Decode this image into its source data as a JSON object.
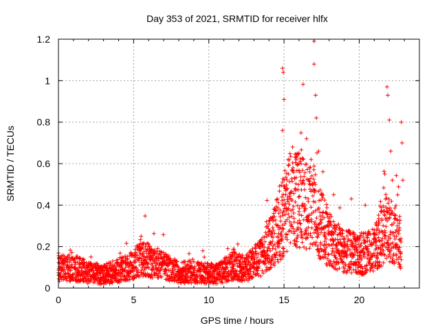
{
  "chart_data": {
    "type": "scatter",
    "title": "Day 353 of 2021, SRMTID for receiver hlfx",
    "xlabel": "GPS time / hours",
    "ylabel": "SRMTID / TECUs",
    "xlim": [
      0,
      24
    ],
    "ylim": [
      0,
      1.2
    ],
    "xticks": [
      0,
      5,
      10,
      15,
      20
    ],
    "yticks": [
      0,
      0.2,
      0.4,
      0.6,
      0.8,
      1,
      1.2
    ],
    "xtick_labels": [
      "0",
      "5",
      "10",
      "15",
      "20"
    ],
    "ytick_labels": [
      "0",
      "0.2",
      "0.4",
      "0.6",
      "0.8",
      "1",
      "1.2"
    ],
    "grid": true,
    "marker": "+",
    "series": [
      {
        "name": "SRMTID",
        "color": "#ff0000",
        "envelope": [
          {
            "x": 0.0,
            "y": 0.09
          },
          {
            "x": 1.0,
            "y": 0.09
          },
          {
            "x": 2.0,
            "y": 0.07
          },
          {
            "x": 3.0,
            "y": 0.06
          },
          {
            "x": 4.0,
            "y": 0.08
          },
          {
            "x": 5.0,
            "y": 0.1
          },
          {
            "x": 5.5,
            "y": 0.14
          },
          {
            "x": 6.5,
            "y": 0.11
          },
          {
            "x": 8.0,
            "y": 0.07
          },
          {
            "x": 9.5,
            "y": 0.07
          },
          {
            "x": 10.5,
            "y": 0.06
          },
          {
            "x": 11.5,
            "y": 0.1
          },
          {
            "x": 12.5,
            "y": 0.09
          },
          {
            "x": 13.5,
            "y": 0.14
          },
          {
            "x": 14.2,
            "y": 0.22
          },
          {
            "x": 14.8,
            "y": 0.3
          },
          {
            "x": 15.5,
            "y": 0.42
          },
          {
            "x": 16.2,
            "y": 0.4
          },
          {
            "x": 17.0,
            "y": 0.35
          },
          {
            "x": 18.0,
            "y": 0.22
          },
          {
            "x": 19.0,
            "y": 0.17
          },
          {
            "x": 20.0,
            "y": 0.15
          },
          {
            "x": 21.0,
            "y": 0.17
          },
          {
            "x": 21.8,
            "y": 0.28
          },
          {
            "x": 22.3,
            "y": 0.26
          },
          {
            "x": 22.8,
            "y": 0.2
          }
        ],
        "points": [
          {
            "x": 14.9,
            "y": 1.06
          },
          {
            "x": 14.95,
            "y": 1.04
          },
          {
            "x": 15.0,
            "y": 0.91
          },
          {
            "x": 14.9,
            "y": 0.76
          },
          {
            "x": 15.3,
            "y": 0.55
          },
          {
            "x": 15.6,
            "y": 0.58
          },
          {
            "x": 16.0,
            "y": 0.6
          },
          {
            "x": 16.5,
            "y": 0.72
          },
          {
            "x": 16.8,
            "y": 0.62
          },
          {
            "x": 17.0,
            "y": 1.19
          },
          {
            "x": 17.0,
            "y": 1.08
          },
          {
            "x": 17.1,
            "y": 0.93
          },
          {
            "x": 17.15,
            "y": 0.82
          },
          {
            "x": 17.3,
            "y": 0.66
          },
          {
            "x": 17.5,
            "y": 0.45
          },
          {
            "x": 18.3,
            "y": 0.45
          },
          {
            "x": 20.4,
            "y": 0.4
          },
          {
            "x": 21.7,
            "y": 0.55
          },
          {
            "x": 21.85,
            "y": 0.97
          },
          {
            "x": 21.9,
            "y": 0.93
          },
          {
            "x": 22.0,
            "y": 0.81
          },
          {
            "x": 22.1,
            "y": 0.66
          },
          {
            "x": 22.2,
            "y": 0.52
          },
          {
            "x": 22.8,
            "y": 0.8
          },
          {
            "x": 22.85,
            "y": 0.7
          },
          {
            "x": 22.9,
            "y": 0.52
          },
          {
            "x": 9.6,
            "y": 0.18
          },
          {
            "x": 5.5,
            "y": 0.25
          },
          {
            "x": 14.0,
            "y": 0.27
          }
        ]
      }
    ]
  }
}
